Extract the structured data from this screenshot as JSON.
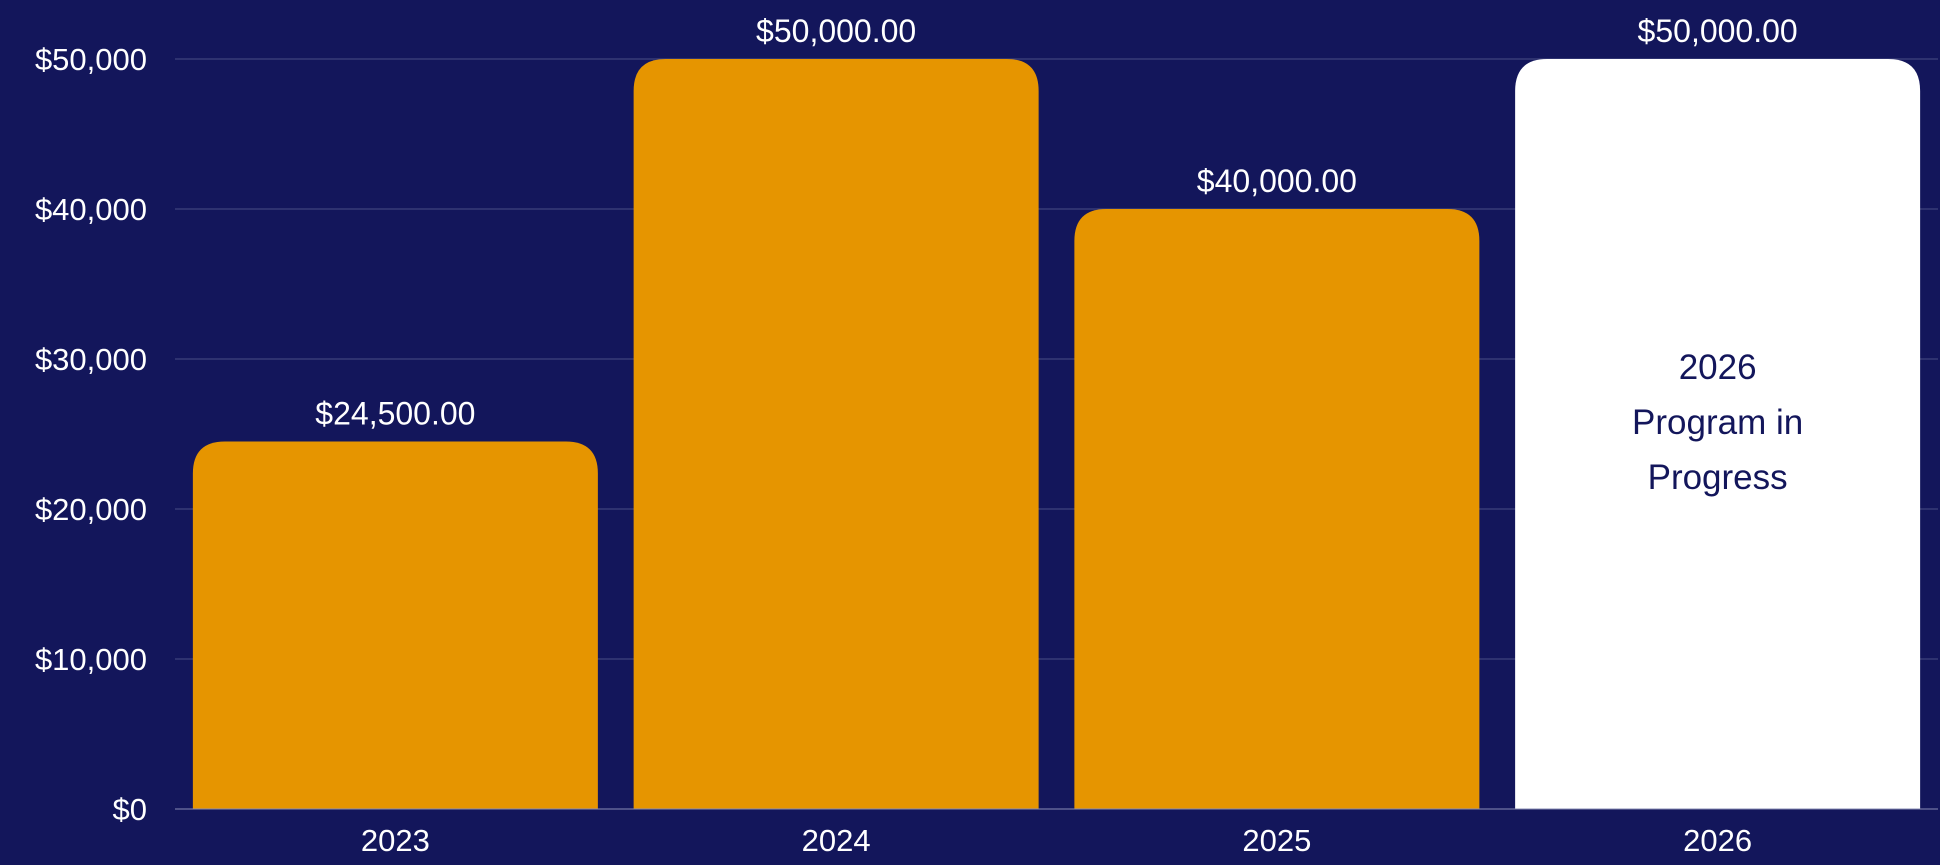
{
  "chart_data": {
    "type": "bar",
    "categories": [
      "2023",
      "2024",
      "2025",
      "2026"
    ],
    "values": [
      24500,
      50000,
      40000,
      50000
    ],
    "data_labels": [
      "$24,500.00",
      "$50,000.00",
      "$40,000.00",
      "$50,000.00"
    ],
    "bar_colors": [
      "#e69500",
      "#e69500",
      "#e69500",
      "#ffffff"
    ],
    "bar_inner_labels": [
      "",
      "",
      "",
      "2026\nProgram in\nProgress"
    ],
    "yticks": [
      0,
      10000,
      20000,
      30000,
      40000,
      50000
    ],
    "ytick_labels": [
      "$0",
      "$10,000",
      "$20,000",
      "$30,000",
      "$40,000",
      "$50,000"
    ],
    "ylim": [
      0,
      50000
    ],
    "grid": true,
    "legend": "none",
    "title": "",
    "xlabel": "",
    "ylabel": "",
    "colors": {
      "background": "#13165b",
      "text": "#ffffff",
      "inner_text": "#13165b",
      "grid": "#4a4d86"
    }
  }
}
